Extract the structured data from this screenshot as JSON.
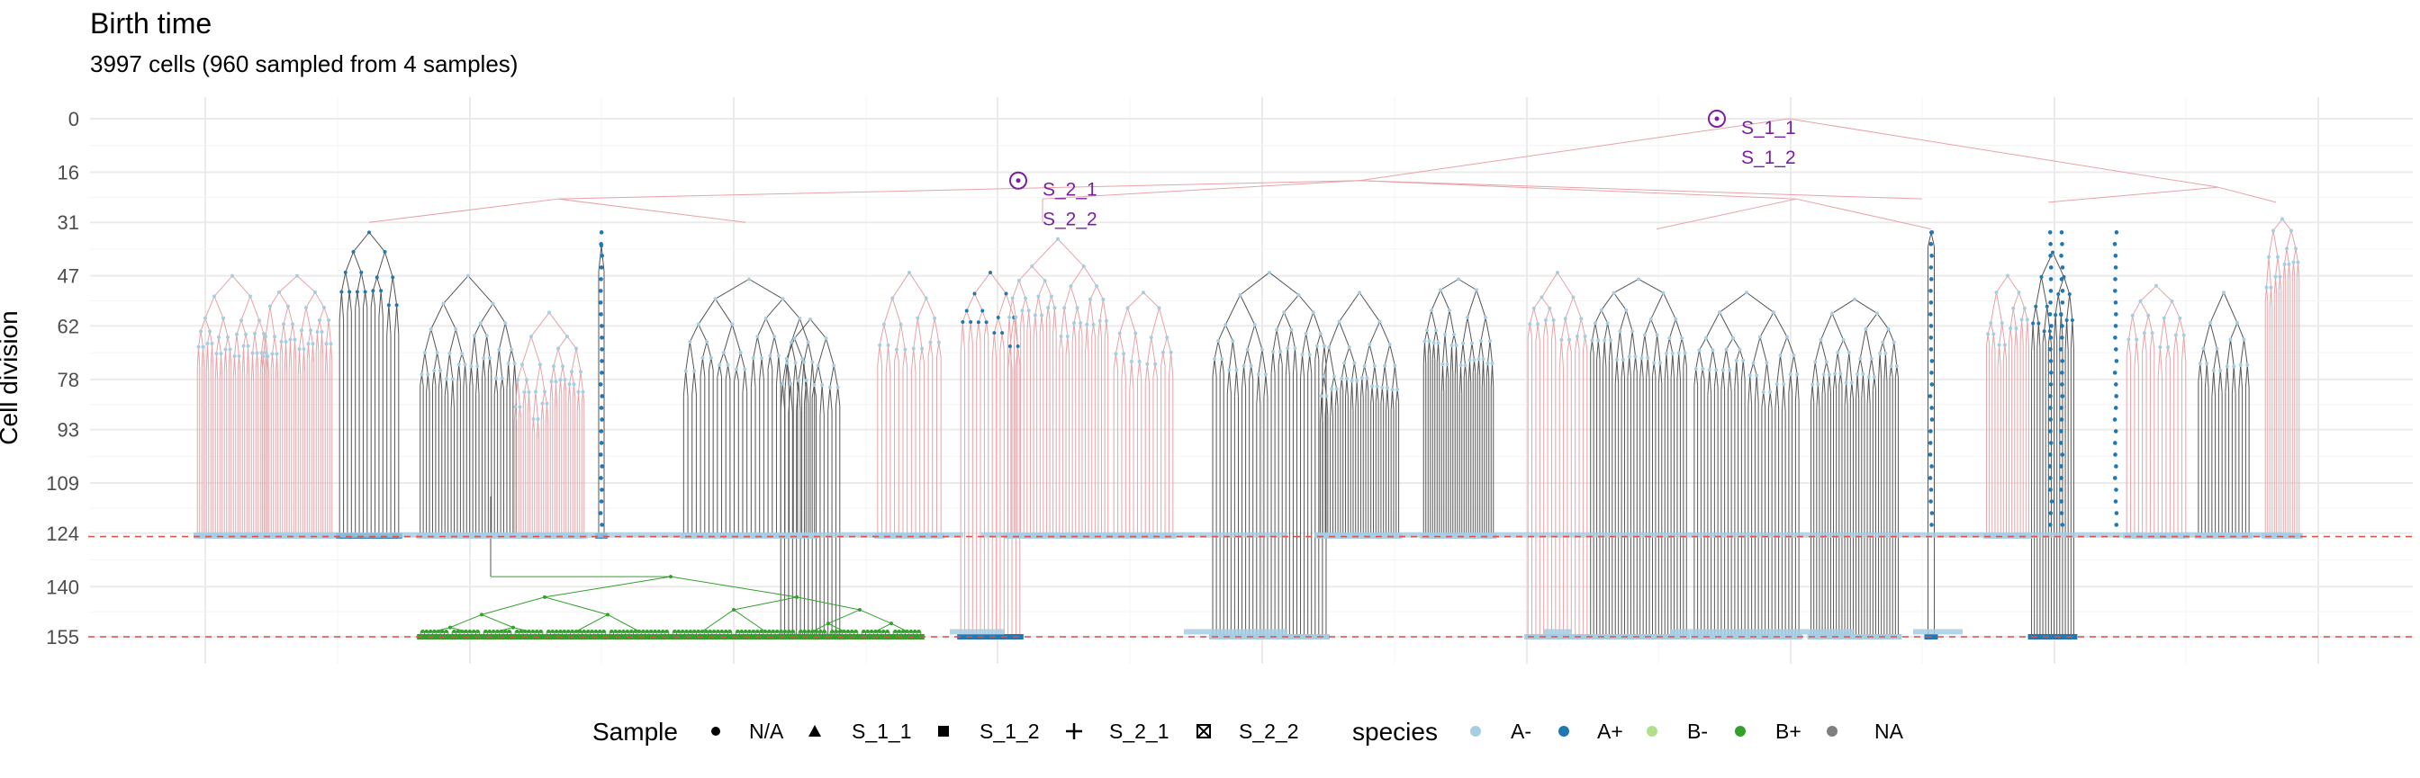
{
  "chart_data": {
    "type": "tree",
    "title": "Birth time",
    "subtitle": "3997 cells (960 sampled from 4 samples)",
    "ylabel": "Cell division",
    "xlabel": "",
    "y_ticks": [
      0,
      16,
      31,
      47,
      62,
      78,
      93,
      109,
      124,
      140,
      155
    ],
    "y_reversed": true,
    "ylim": [
      0,
      155
    ],
    "grid": true,
    "reference_lines": [
      125,
      155
    ],
    "sampled_nodes": [
      {
        "x": 0.7,
        "y": 0,
        "labels": [
          "S_1_1",
          "S_1_2"
        ]
      },
      {
        "x": 0.4,
        "y": 18.5,
        "labels": [
          "S_2_1",
          "S_2_2"
        ]
      }
    ],
    "legend_placement": "bottom",
    "legend": {
      "sample": {
        "title": "Sample",
        "entries": [
          {
            "label": "N/A",
            "shape": "circle"
          },
          {
            "label": "S_1_1",
            "shape": "triangle"
          },
          {
            "label": "S_1_2",
            "shape": "square"
          },
          {
            "label": "S_2_1",
            "shape": "plus"
          },
          {
            "label": "S_2_2",
            "shape": "boxed-x"
          }
        ]
      },
      "species": {
        "title": "species",
        "entries": [
          {
            "label": "A-",
            "color": "#a6cee3"
          },
          {
            "label": "A+",
            "color": "#1f78b4"
          },
          {
            "label": "B-",
            "color": "#b2df8a"
          },
          {
            "label": "B+",
            "color": "#33a02c"
          },
          {
            "label": "NA",
            "color": "#7f7f7f"
          }
        ]
      }
    }
  },
  "colors": {
    "edge_pink": "#e7a3a8",
    "edge_grey": "#555555",
    "edge_green": "#33a02c",
    "highlight": "#7a1fa2",
    "ref_line": "#d9534f"
  }
}
